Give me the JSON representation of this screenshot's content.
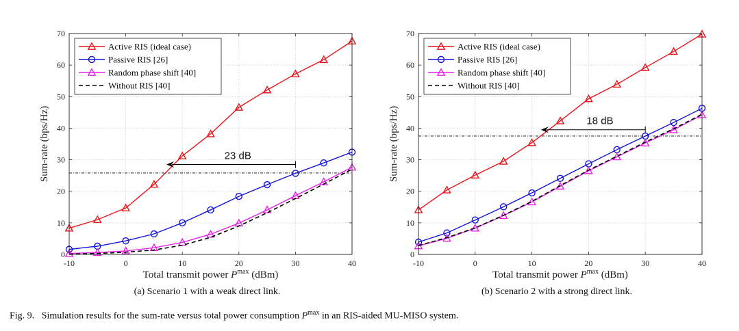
{
  "caption": {
    "prefix": "Fig. 9.",
    "text_before": "Simulation results for the sum-rate versus total power consumption",
    "symbol": "P",
    "symbol_sup": "max",
    "text_after": "in an RIS-aided MU-MISO system."
  },
  "chart_data": [
    {
      "type": "line",
      "subcaption": "(a) Scenario 1 with a weak direct link.",
      "xlabel_prefix": "Total transmit power ",
      "xlabel_symbol": "P",
      "xlabel_sup": "max",
      "xlabel_suffix": " (dBm)",
      "ylabel": "Sum-rate (bps/Hz)",
      "xlim": [
        -10,
        40
      ],
      "ylim": [
        0,
        70
      ],
      "xticks": [
        -10,
        0,
        10,
        20,
        30,
        40
      ],
      "yticks": [
        0,
        10,
        20,
        30,
        40,
        50,
        60,
        70
      ],
      "grid": true,
      "legend_position": "top-left",
      "x": [
        -10,
        -5,
        0,
        5,
        10,
        15,
        20,
        25,
        30,
        35,
        40
      ],
      "series": [
        {
          "name": "Active RIS (ideal case)",
          "color": "#e8151b",
          "marker": "triangle",
          "dash": "solid",
          "values": [
            8.3,
            11.0,
            14.7,
            22.2,
            31.2,
            38.2,
            46.6,
            52.1,
            57.2,
            61.7,
            67.6
          ]
        },
        {
          "name": "Passive RIS [26]",
          "color": "#1414d8",
          "marker": "circle",
          "dash": "solid",
          "values": [
            1.6,
            2.6,
            4.3,
            6.5,
            10.0,
            14.1,
            18.4,
            22.1,
            25.7,
            29.0,
            32.4
          ]
        },
        {
          "name": "Random phase shift [40]",
          "color": "#e622e6",
          "marker": "triangle",
          "dash": "solid",
          "values": [
            0.3,
            0.6,
            1.1,
            2.1,
            3.8,
            6.4,
            9.9,
            14.1,
            18.6,
            23.0,
            27.6
          ]
        },
        {
          "name": "Without RIS [40]",
          "color": "#000000",
          "marker": "none",
          "dash": "dashed",
          "values": [
            0.1,
            0.3,
            0.7,
            1.4,
            2.9,
            5.4,
            9.0,
            13.2,
            17.7,
            22.3,
            27.0
          ]
        }
      ],
      "reference_y": 25.8,
      "annotation": {
        "text": "23 dB",
        "from_x": 30,
        "to_x": 7.2,
        "y": 28.5
      }
    },
    {
      "type": "line",
      "subcaption": "(b) Scenario 2 with a strong direct link.",
      "xlabel_prefix": "Total transmit power ",
      "xlabel_symbol": "P",
      "xlabel_sup": "max",
      "xlabel_suffix": " (dBm)",
      "ylabel": "Sum-rate (bps/Hz)",
      "xlim": [
        -10,
        40
      ],
      "ylim": [
        0,
        70
      ],
      "xticks": [
        -10,
        0,
        10,
        20,
        30,
        40
      ],
      "yticks": [
        0,
        10,
        20,
        30,
        40,
        50,
        60,
        70
      ],
      "grid": true,
      "legend_position": "top-left",
      "x": [
        -10,
        -5,
        0,
        5,
        10,
        15,
        20,
        25,
        30,
        35,
        40
      ],
      "series": [
        {
          "name": "Active RIS (ideal case)",
          "color": "#e8151b",
          "marker": "triangle",
          "dash": "solid",
          "values": [
            14.1,
            20.4,
            25.1,
            29.5,
            35.4,
            42.3,
            49.3,
            53.9,
            59.2,
            64.3,
            69.8
          ]
        },
        {
          "name": "Passive RIS [26]",
          "color": "#1414d8",
          "marker": "circle",
          "dash": "solid",
          "values": [
            3.9,
            6.8,
            10.9,
            15.1,
            19.5,
            24.1,
            28.7,
            33.2,
            37.5,
            41.8,
            46.3
          ]
        },
        {
          "name": "Random phase shift [40]",
          "color": "#e622e6",
          "marker": "triangle",
          "dash": "solid",
          "values": [
            2.7,
            5.1,
            8.3,
            12.3,
            16.6,
            21.6,
            26.5,
            30.9,
            35.3,
            39.5,
            44.2
          ]
        },
        {
          "name": "Without RIS [40]",
          "color": "#000000",
          "marker": "none",
          "dash": "dashed",
          "values": [
            2.8,
            5.3,
            8.4,
            12.4,
            16.8,
            21.8,
            26.7,
            31.1,
            35.6,
            39.8,
            44.4
          ]
        }
      ],
      "reference_y": 37.5,
      "annotation": {
        "text": "18 dB",
        "from_x": 30,
        "to_x": 11.6,
        "y": 39.5
      }
    }
  ]
}
